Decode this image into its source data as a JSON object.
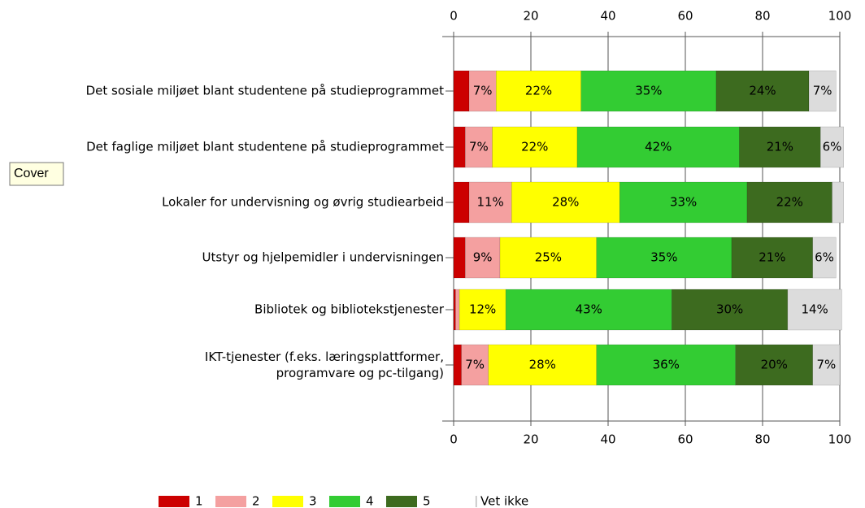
{
  "chart_data": {
    "type": "stacked_bar_horizontal",
    "categories": [
      "Det sosiale miljøet blant studentene på studieprogrammet",
      "Det faglige miljøet blant studentene på studieprogrammet",
      "Lokaler for undervisning og øvrig studiearbeid",
      "Utstyr og hjelpemidler i undervisningen",
      "Bibliotek og bibliotekstjenester",
      "IKT-tjenester (f.eks. læringsplattformer,\nprogramvare og pc-tilgang)"
    ],
    "series": [
      {
        "name": "1",
        "color": "#cc0000",
        "values": [
          4,
          3,
          4,
          3,
          0.5,
          2
        ],
        "value_labels": [
          null,
          null,
          null,
          null,
          null,
          null
        ]
      },
      {
        "name": "2",
        "color": "#f4a0a0",
        "values": [
          7,
          7,
          11,
          9,
          1,
          7
        ],
        "value_labels": [
          "7%",
          "7%",
          "11%",
          "9%",
          null,
          "7%"
        ]
      },
      {
        "name": "3",
        "color": "#ffff00",
        "values": [
          22,
          22,
          28,
          25,
          12,
          28
        ],
        "value_labels": [
          "22%",
          "22%",
          "28%",
          "25%",
          "12%",
          "28%"
        ]
      },
      {
        "name": "4",
        "color": "#33cc33",
        "values": [
          35,
          42,
          33,
          35,
          43,
          36
        ],
        "value_labels": [
          "35%",
          "42%",
          "33%",
          "35%",
          "43%",
          "36%"
        ]
      },
      {
        "name": "5",
        "color": "#3d6b1f",
        "values": [
          24,
          21,
          22,
          21,
          30,
          20
        ],
        "value_labels": [
          "24%",
          "21%",
          "22%",
          "21%",
          "30%",
          "20%"
        ]
      },
      {
        "name": "Vet ikke",
        "color": "#dcdcdc",
        "values": [
          7,
          6,
          3,
          6,
          14,
          7
        ],
        "value_labels": [
          "7%",
          "6%",
          null,
          "6%",
          "14%",
          "7%"
        ]
      }
    ],
    "xlim": [
      0,
      100
    ],
    "xticks": [
      0,
      20,
      40,
      60,
      80,
      100
    ],
    "grid": true,
    "legend": "bottom",
    "tooltip": "Cover"
  }
}
